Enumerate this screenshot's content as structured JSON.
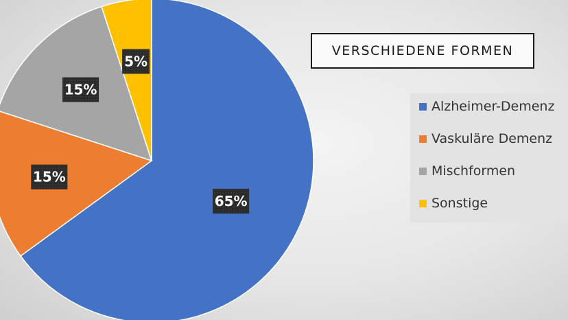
{
  "chart_data": {
    "type": "pie",
    "title": "VERSCHIEDENE FORMEN",
    "categories": [
      "Alzheimer-Demenz",
      "Vaskuläre Demenz",
      "Mischformen",
      "Sonstige"
    ],
    "values": [
      65,
      15,
      15,
      5
    ],
    "labels": [
      "65%",
      "15%",
      "15%",
      "5%"
    ],
    "colors": [
      "#4472C4",
      "#ED7D31",
      "#A5A5A5",
      "#FFC000"
    ],
    "start": "12 o'clock",
    "direction": "clockwise",
    "legend_position": "right"
  }
}
